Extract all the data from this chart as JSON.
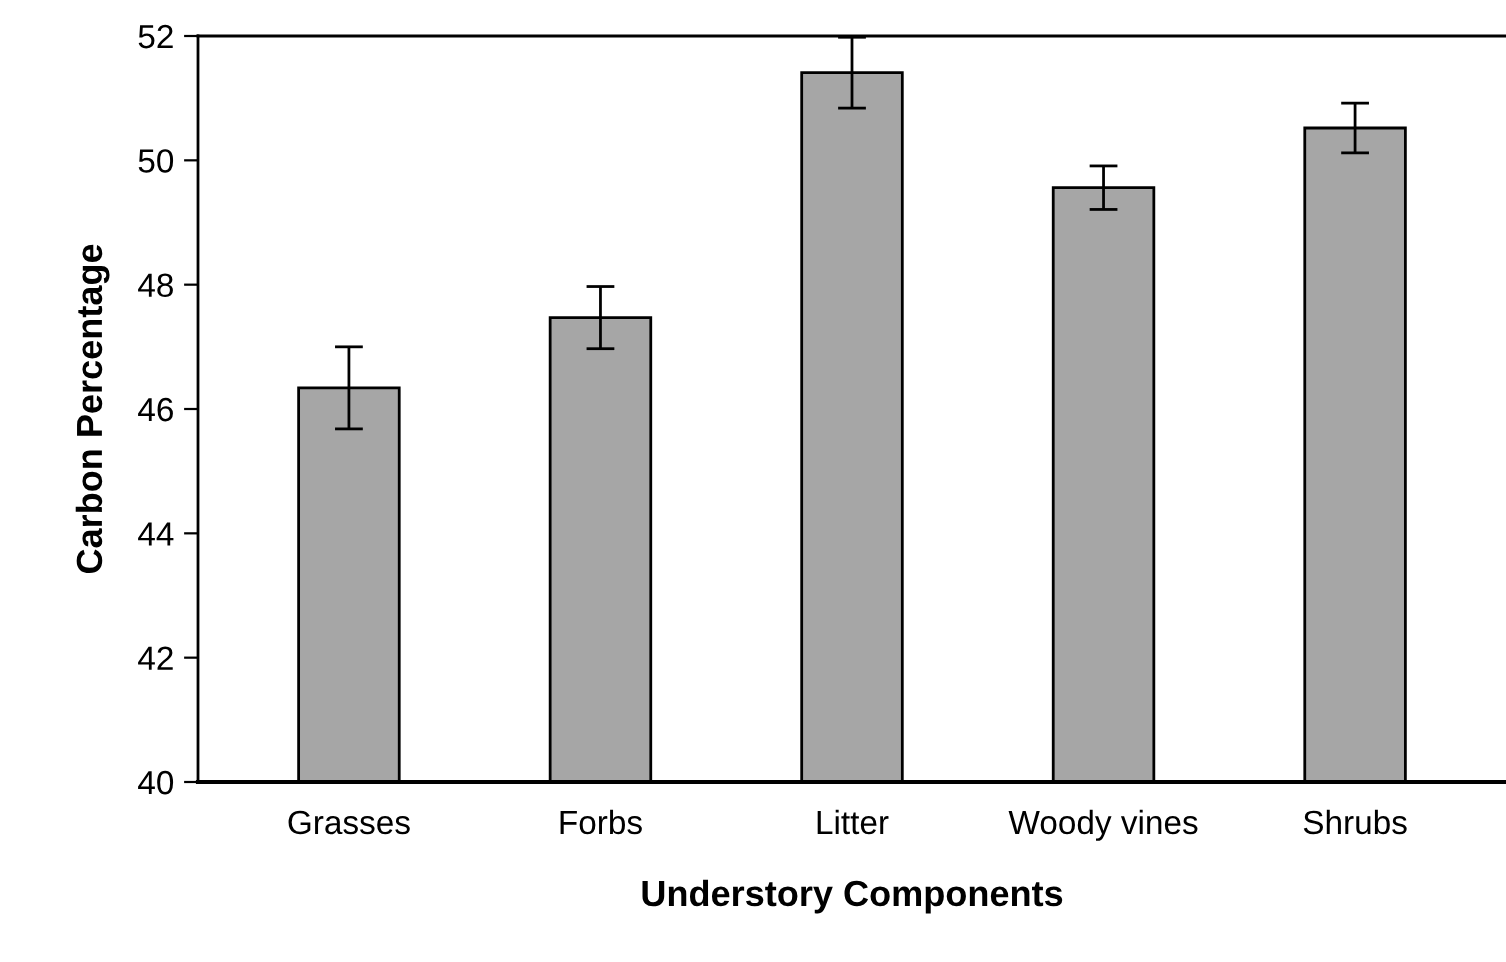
{
  "chart_data": {
    "type": "bar",
    "xlabel": "Understory Components",
    "ylabel": "Carbon Percentage",
    "categories": [
      "Grasses",
      "Forbs",
      "Litter",
      "Woody vines",
      "Shrubs"
    ],
    "values": [
      46.34,
      47.47,
      51.41,
      49.56,
      50.52
    ],
    "errors": [
      0.66,
      0.5,
      0.57,
      0.35,
      0.4
    ],
    "color": "#a6a6a6",
    "ylim": [
      40,
      52
    ],
    "yticks": [
      40,
      42,
      44,
      46,
      48,
      50,
      52
    ],
    "grid": false,
    "legend": false
  }
}
